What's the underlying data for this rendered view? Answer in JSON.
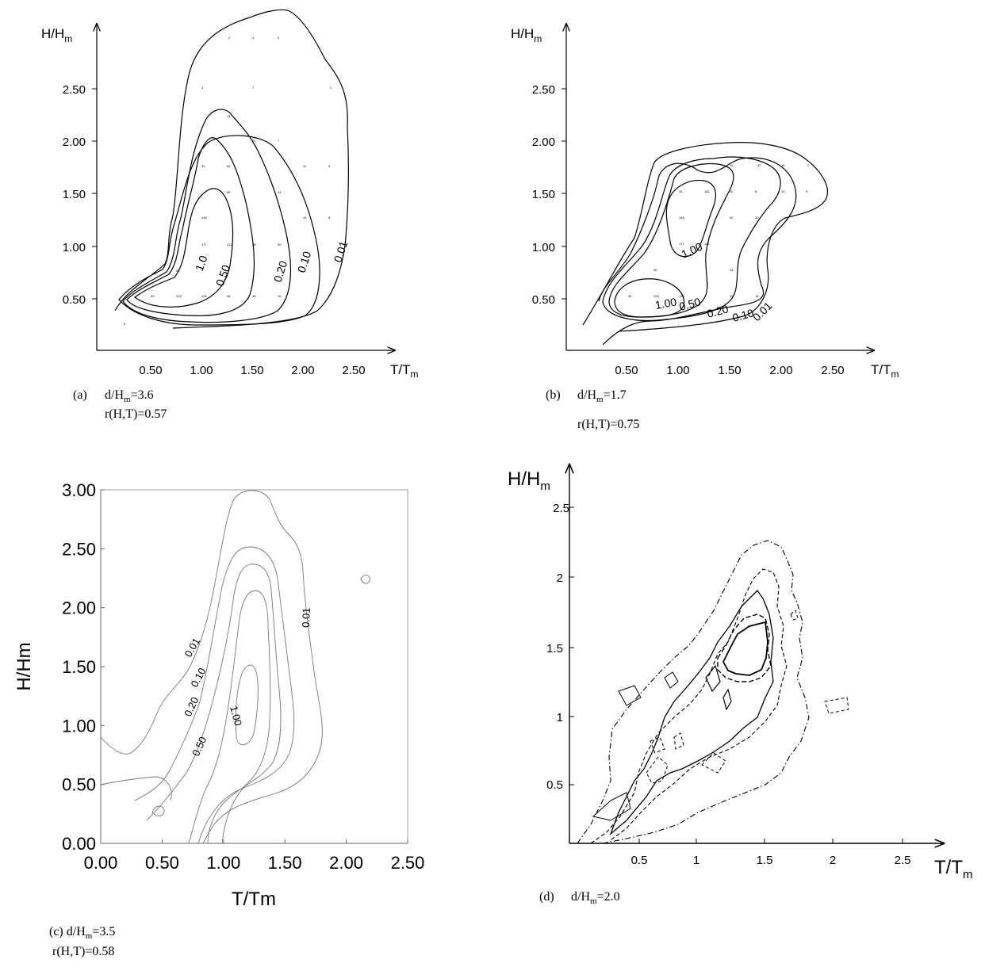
{
  "chart_data": [
    {
      "panel": "a",
      "type": "contour",
      "xlabel": "T/T",
      "xlabel_sub": "m",
      "ylabel": "H/H",
      "ylabel_sub": "m",
      "xticks": [
        "0.50",
        "1.00",
        "1.50",
        "2.00",
        "2.50"
      ],
      "yticks": [
        "0.50",
        "1.00",
        "1.50",
        "2.00",
        "2.50"
      ],
      "contour_levels": [
        "1.0",
        "0.50",
        "0.20",
        "0.10",
        "0.01"
      ],
      "caption_letter": "(a)",
      "caption_line1_main": "d/H",
      "caption_line1_sub": "m",
      "caption_line1_rest": "=3.6",
      "caption_line2": "r(H,T)=0.57"
    },
    {
      "panel": "b",
      "type": "contour",
      "xlabel": "T/T",
      "xlabel_sub": "m",
      "ylabel": "H/H",
      "ylabel_sub": "m",
      "xticks": [
        "0.50",
        "1.00",
        "1.50",
        "2.00",
        "2.50"
      ],
      "yticks": [
        "0.50",
        "1.00",
        "1.50",
        "2.00",
        "2.50"
      ],
      "contour_levels": [
        "1.00",
        "1.00",
        "0.50",
        "0.20",
        "0.10",
        "0.01"
      ],
      "caption_letter": "(b)",
      "caption_line1_main": "d/H",
      "caption_line1_sub": "m",
      "caption_line1_rest": "=1.7",
      "caption_line2": "r(H,T)=0.75"
    },
    {
      "panel": "c",
      "type": "contour",
      "xlabel": "T/Tm",
      "ylabel": "H/Hm",
      "xticks": [
        "0.00",
        "0.50",
        "1.00",
        "1.50",
        "2.00",
        "2.50"
      ],
      "yticks": [
        "0.00",
        "0.50",
        "1.00",
        "1.50",
        "2.00",
        "2.50",
        "3.00"
      ],
      "xlim": [
        0,
        2.5
      ],
      "ylim": [
        0,
        3
      ],
      "contour_levels": [
        "0.01",
        "0.10",
        "0.20",
        "0.50",
        "1.00",
        "0.01"
      ],
      "caption_letter": "(c)",
      "caption_line1_main": "d/H",
      "caption_line1_sub": "m",
      "caption_line1_rest": "=3.5",
      "caption_line2": "r(H,T)=0.58"
    },
    {
      "panel": "d",
      "type": "contour",
      "xlabel": "T/T",
      "xlabel_sub": "m",
      "ylabel": "H/H",
      "ylabel_sub": "m",
      "xticks": [
        "0.5",
        "1",
        "1.5",
        "2",
        "2.5"
      ],
      "yticks": [
        "0.5",
        "1",
        "1.5",
        "2",
        "2.5"
      ],
      "caption_letter": "(d)",
      "caption_line1_main": "d/H",
      "caption_line1_sub": "m",
      "caption_line1_rest": "=2.0"
    }
  ]
}
